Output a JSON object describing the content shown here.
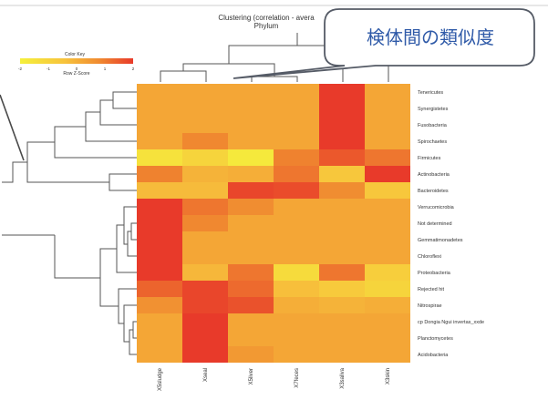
{
  "chart_data": {
    "type": "heatmap",
    "title": "Clustering (correlation - avera",
    "subtitle": "Phylum",
    "color_key": {
      "title": "Color Key",
      "xlabel": "Row Z-Score",
      "ticks": [
        "-2",
        "-1",
        "0",
        "1",
        "2"
      ],
      "range": [
        -2,
        2
      ],
      "colors": [
        "#f5f03c",
        "#f7c23c",
        "#f08a30",
        "#e83a2a"
      ]
    },
    "columns": [
      "X5sludge",
      "Xseal",
      "X5liver",
      "X7feces",
      "X3saliva",
      "X3skin"
    ],
    "rows": [
      "Tenericutes",
      "Synergistetes",
      "Fusobacteria",
      "Spirochaetes",
      "Firmicutes",
      "Actinobacteria",
      "Bacteroidetes",
      "Verrucomicrobia",
      "Not determined",
      "Gemmatimonadetes",
      "Chloroflexi",
      "Proteobacteria",
      "Rejected hit",
      "Nitrospirae",
      "cp Dongia Ngui invertas_xxde",
      "Planctomycetes",
      "Acidobacteria"
    ],
    "values": [
      [
        0,
        0,
        0,
        0,
        2,
        0
      ],
      [
        0,
        0,
        0,
        0,
        2,
        0
      ],
      [
        0,
        0,
        0,
        0,
        2,
        0
      ],
      [
        0,
        0.7,
        0,
        0,
        2,
        0
      ],
      [
        -1.6,
        -1.2,
        -1.8,
        0.8,
        1.5,
        1.0
      ],
      [
        0.8,
        -0.3,
        -0.2,
        1.0,
        -0.8,
        2.0
      ],
      [
        -0.5,
        -0.5,
        1.8,
        1.7,
        0.6,
        -0.8
      ],
      [
        2,
        1.0,
        0.6,
        0,
        0,
        0
      ],
      [
        2,
        0.7,
        0,
        0,
        0,
        0
      ],
      [
        2,
        0,
        0,
        0,
        0,
        0
      ],
      [
        2,
        0,
        0,
        0,
        0,
        0
      ],
      [
        2,
        -0.4,
        1.0,
        -1.4,
        1.0,
        -1.0
      ],
      [
        1.3,
        1.8,
        1.2,
        -0.6,
        -0.9,
        -1.2
      ],
      [
        0.5,
        1.8,
        1.6,
        -0.2,
        -0.3,
        -0.2
      ],
      [
        0,
        2,
        0,
        0,
        0,
        0
      ],
      [
        0,
        2,
        0,
        0,
        0,
        0
      ],
      [
        0,
        2,
        0.3,
        0,
        0,
        0
      ]
    ]
  },
  "annotation": {
    "text": "検体間の類似度"
  }
}
